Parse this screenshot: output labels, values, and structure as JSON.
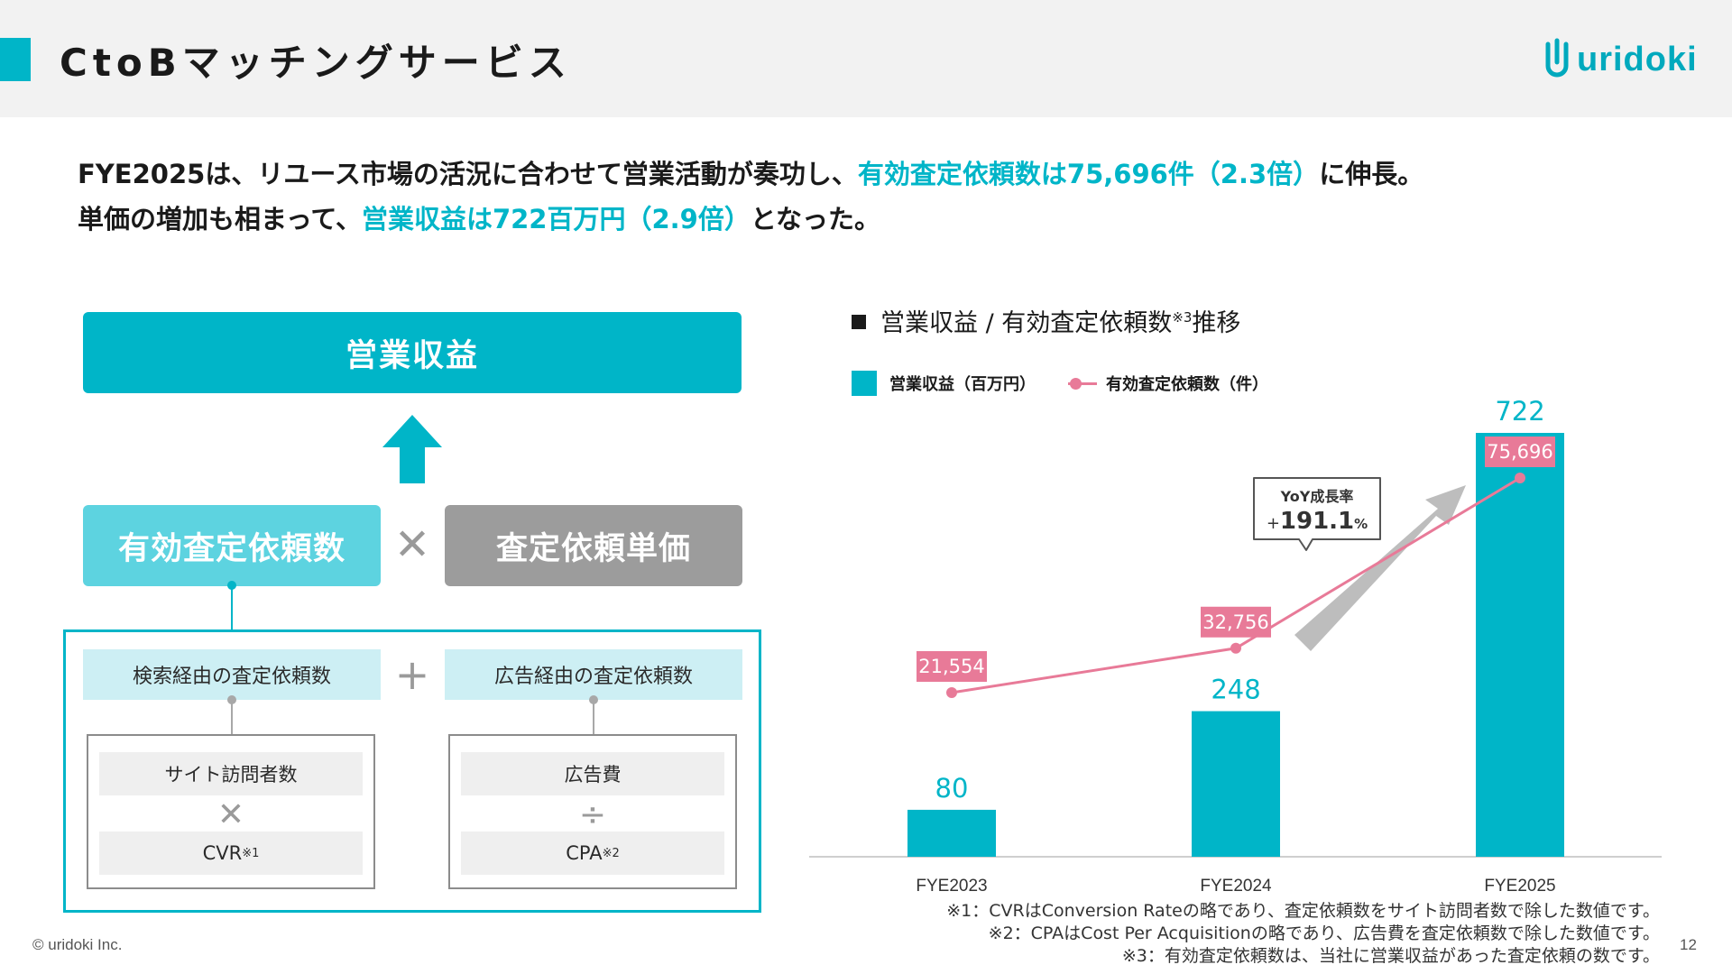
{
  "header": {
    "title": "CtoBマッチングサービス",
    "logo_text": "uridoki"
  },
  "summary": {
    "line1_a": "FYE2025は、リユース市場の活況に合わせて営業活動が奏功し、",
    "line1_hl": "有効査定依頼数は75,696件（2.3倍）",
    "line1_b": "に伸長。",
    "line2_a": "単価の増加も相まって、",
    "line2_hl": "営業収益は722百万円（2.9倍）",
    "line2_b": "となった。"
  },
  "diagram": {
    "revenue": "営業収益",
    "requests": "有効査定依頼数",
    "times": "✕",
    "unit_price": "査定依頼単価",
    "search_requests": "検索経由の査定依頼数",
    "plus": "+",
    "ad_requests": "広告経由の査定依頼数",
    "site_visitors": "サイト訪問者数",
    "cvr": "CVR",
    "cvr_note": "※1",
    "ad_cost": "広告費",
    "divide": "÷",
    "cpa": "CPA",
    "cpa_note": "※2"
  },
  "chart_title": {
    "main": "営業収益 / 有効査定依頼数",
    "note": "※3",
    "tail": "推移"
  },
  "legend": {
    "revenue": "営業収益（百万円）",
    "requests": "有効査定依頼数（件）"
  },
  "chart_data": {
    "type": "bar",
    "categories": [
      "FYE2023",
      "FYE2024",
      "FYE2025"
    ],
    "series": [
      {
        "name": "営業収益（百万円）",
        "type": "bar",
        "values": [
          80,
          248,
          722
        ],
        "labels": [
          "80",
          "248",
          "722"
        ]
      },
      {
        "name": "有効査定依頼数（件）",
        "type": "line",
        "values": [
          21554,
          32756,
          75696
        ],
        "labels": [
          "21,554",
          "32,756",
          "75,696"
        ]
      }
    ],
    "annotation": {
      "title": "YoY成長率",
      "value_prefix": "+",
      "value": "191.1",
      "unit": "%"
    }
  },
  "colors": {
    "accent": "#00b5c8",
    "accent_light": "#5dd3e0",
    "gray_box": "#9c9c9c",
    "line": "#e87a98",
    "label_bg": "#e87a98"
  },
  "notes": [
    "※1：CVRはConversion Rateの略であり、査定依頼数をサイト訪問者数で除した数値です。",
    "※2：CPAはCost Per Acquisitionの略であり、広告費を査定依頼数で除した数値です。",
    "※3：有効査定依頼数は、当社に営業収益があった査定依頼の数です。"
  ],
  "footer": {
    "copyright": "© uridoki Inc.",
    "page": "12"
  }
}
